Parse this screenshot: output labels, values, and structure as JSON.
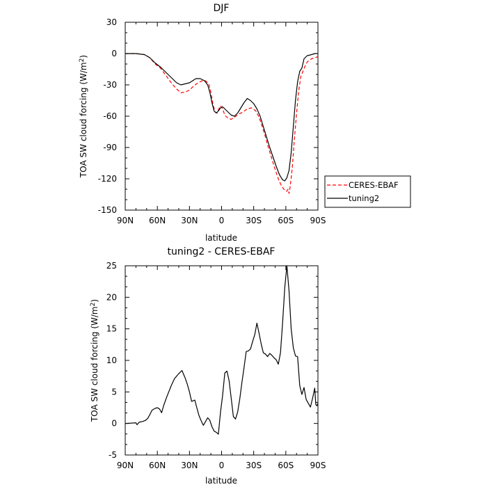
{
  "chart_data": [
    {
      "type": "line",
      "title": "DJF",
      "xlabel": "",
      "ylabel": "TOA SW cloud forcing (W/m",
      "ylabel_sup": "2",
      "ylabel_end": ")",
      "xlim": [
        -90,
        90
      ],
      "ylim": [
        -150,
        30
      ],
      "x_ticks": [
        -90,
        -60,
        -30,
        0,
        30,
        60,
        90
      ],
      "x_tick_labels": [
        "90N",
        "60N",
        "30N",
        "0",
        "30S",
        "60S",
        "90S"
      ],
      "y_ticks": [
        -150,
        -120,
        -90,
        -60,
        -30,
        0,
        30
      ],
      "y_tick_labels": [
        "-150",
        "-120",
        "-90",
        "-60",
        "-30",
        "0",
        "30"
      ],
      "legend_position": "right",
      "series": [
        {
          "name": "CERES-EBAF",
          "color": "#ff0000",
          "dash": "dashed",
          "points": [
            [
              -90,
              0
            ],
            [
              -80,
              0
            ],
            [
              -72,
              -1
            ],
            [
              -67,
              -4
            ],
            [
              -62,
              -10
            ],
            [
              -57,
              -14
            ],
            [
              -52,
              -21
            ],
            [
              -47,
              -28
            ],
            [
              -42,
              -34
            ],
            [
              -38,
              -37.5
            ],
            [
              -34,
              -37
            ],
            [
              -30,
              -35
            ],
            [
              -26,
              -31
            ],
            [
              -22,
              -28
            ],
            [
              -18,
              -26
            ],
            [
              -15,
              -26
            ],
            [
              -12,
              -29
            ],
            [
              -10,
              -37
            ],
            [
              -8,
              -49
            ],
            [
              -6,
              -56
            ],
            [
              -4,
              -57
            ],
            [
              -3,
              -54
            ],
            [
              -1,
              -50
            ],
            [
              1,
              -53
            ],
            [
              3,
              -59
            ],
            [
              6,
              -62
            ],
            [
              9,
              -63
            ],
            [
              12,
              -61
            ],
            [
              16,
              -58
            ],
            [
              20,
              -56
            ],
            [
              24,
              -53
            ],
            [
              28,
              -52
            ],
            [
              32,
              -55
            ],
            [
              35,
              -61
            ],
            [
              38,
              -70
            ],
            [
              41,
              -80
            ],
            [
              44,
              -91
            ],
            [
              47,
              -101
            ],
            [
              50,
              -111
            ],
            [
              53,
              -120
            ],
            [
              56,
              -127
            ],
            [
              59,
              -131
            ],
            [
              61,
              -132
            ],
            [
              62,
              -130
            ],
            [
              63,
              -134
            ],
            [
              64,
              -128
            ],
            [
              66,
              -110
            ],
            [
              68,
              -82
            ],
            [
              70,
              -58
            ],
            [
              72,
              -36
            ],
            [
              74,
              -22
            ],
            [
              76,
              -17
            ],
            [
              78,
              -12
            ],
            [
              80,
              -8
            ],
            [
              84,
              -5
            ],
            [
              87,
              -4
            ],
            [
              90,
              -3
            ]
          ]
        },
        {
          "name": "tuning2",
          "color": "#000000",
          "dash": "solid",
          "points": [
            [
              -90,
              0
            ],
            [
              -80,
              0
            ],
            [
              -72,
              -1
            ],
            [
              -67,
              -4
            ],
            [
              -62,
              -9
            ],
            [
              -57,
              -13
            ],
            [
              -52,
              -18
            ],
            [
              -47,
              -23
            ],
            [
              -42,
              -28
            ],
            [
              -38,
              -30
            ],
            [
              -34,
              -29
            ],
            [
              -30,
              -28
            ],
            [
              -27,
              -26
            ],
            [
              -24,
              -24
            ],
            [
              -20,
              -24
            ],
            [
              -16,
              -26
            ],
            [
              -13,
              -30
            ],
            [
              -11,
              -37
            ],
            [
              -9,
              -47
            ],
            [
              -7,
              -55
            ],
            [
              -5,
              -57
            ],
            [
              -3,
              -55
            ],
            [
              -1,
              -52
            ],
            [
              1,
              -51
            ],
            [
              3,
              -53
            ],
            [
              6,
              -56
            ],
            [
              9,
              -59
            ],
            [
              12,
              -60
            ],
            [
              15,
              -57
            ],
            [
              18,
              -52
            ],
            [
              21,
              -47
            ],
            [
              24,
              -43
            ],
            [
              27,
              -45
            ],
            [
              30,
              -48
            ],
            [
              33,
              -53
            ],
            [
              36,
              -60
            ],
            [
              39,
              -70
            ],
            [
              42,
              -80
            ],
            [
              45,
              -90
            ],
            [
              48,
              -99
            ],
            [
              51,
              -108
            ],
            [
              54,
              -116
            ],
            [
              57,
              -121
            ],
            [
              59,
              -122
            ],
            [
              61,
              -119
            ],
            [
              63,
              -112
            ],
            [
              65,
              -95
            ],
            [
              67,
              -70
            ],
            [
              69,
              -45
            ],
            [
              71,
              -27
            ],
            [
              73,
              -17
            ],
            [
              75,
              -14
            ],
            [
              77,
              -5
            ],
            [
              80,
              -2
            ],
            [
              84,
              -1
            ],
            [
              87,
              0
            ],
            [
              90,
              0
            ]
          ]
        }
      ]
    },
    {
      "type": "line",
      "title": "tuning2 - CERES-EBAF",
      "xlabel": "latitude",
      "ylabel": "TOA SW cloud forcing (W/m",
      "ylabel_sup": "2",
      "ylabel_end": ")",
      "xlim": [
        -90,
        90
      ],
      "ylim": [
        -5,
        25
      ],
      "x_ticks": [
        -90,
        -60,
        -30,
        0,
        30,
        60,
        90
      ],
      "x_tick_labels": [
        "90N",
        "60N",
        "30N",
        "0",
        "30S",
        "60S",
        "90S"
      ],
      "y_ticks": [
        -5,
        0,
        5,
        10,
        15,
        20,
        25
      ],
      "y_tick_labels": [
        "-5",
        "0",
        "5",
        "10",
        "15",
        "20",
        "25"
      ],
      "series": [
        {
          "color": "#000000",
          "dash": "solid",
          "points": [
            [
              -90,
              0
            ],
            [
              -80,
              0.1
            ],
            [
              -79,
              -0.2
            ],
            [
              -77,
              0.2
            ],
            [
              -74,
              0.3
            ],
            [
              -71,
              0.5
            ],
            [
              -69,
              0.8
            ],
            [
              -67,
              1.4
            ],
            [
              -65,
              2.1
            ],
            [
              -62,
              2.4
            ],
            [
              -60,
              2.5
            ],
            [
              -58,
              2.3
            ],
            [
              -56,
              1.7
            ],
            [
              -54,
              2.9
            ],
            [
              -51,
              4.3
            ],
            [
              -47,
              6.0
            ],
            [
              -44,
              7.1
            ],
            [
              -40,
              7.9
            ],
            [
              -37,
              8.4
            ],
            [
              -34,
              7.2
            ],
            [
              -32,
              6.2
            ],
            [
              -30,
              5.0
            ],
            [
              -28,
              3.5
            ],
            [
              -25,
              3.7
            ],
            [
              -23,
              2.4
            ],
            [
              -21,
              1.2
            ],
            [
              -19,
              0.4
            ],
            [
              -17,
              -0.3
            ],
            [
              -15,
              0.3
            ],
            [
              -13,
              0.9
            ],
            [
              -11,
              0.5
            ],
            [
              -9,
              -0.5
            ],
            [
              -7,
              -1.2
            ],
            [
              -5,
              -1.4
            ],
            [
              -3,
              -1.7
            ],
            [
              -1,
              1.8
            ],
            [
              1,
              4.5
            ],
            [
              3,
              8.0
            ],
            [
              5,
              8.3
            ],
            [
              7,
              6.8
            ],
            [
              9,
              4.0
            ],
            [
              11,
              1.1
            ],
            [
              13,
              0.7
            ],
            [
              15,
              1.8
            ],
            [
              17,
              3.9
            ],
            [
              19,
              6.5
            ],
            [
              21,
              8.9
            ],
            [
              23,
              11.4
            ],
            [
              25,
              11.5
            ],
            [
              27,
              11.8
            ],
            [
              29,
              13.0
            ],
            [
              31,
              14.1
            ],
            [
              33,
              15.9
            ],
            [
              35,
              14.3
            ],
            [
              37,
              12.6
            ],
            [
              39,
              11.2
            ],
            [
              41,
              11.0
            ],
            [
              43,
              10.6
            ],
            [
              45,
              11.1
            ],
            [
              47,
              10.8
            ],
            [
              49,
              10.4
            ],
            [
              51,
              10.1
            ],
            [
              53,
              9.4
            ],
            [
              55,
              11.2
            ],
            [
              57,
              16.0
            ],
            [
              59,
              21.5
            ],
            [
              61,
              25.0
            ],
            [
              63,
              21.0
            ],
            [
              65,
              15.0
            ],
            [
              67,
              12.0
            ],
            [
              69,
              10.7
            ],
            [
              71,
              10.6
            ],
            [
              73,
              6.0
            ],
            [
              75,
              4.6
            ],
            [
              77,
              5.7
            ],
            [
              79,
              3.8
            ],
            [
              81,
              3.2
            ],
            [
              83,
              2.6
            ],
            [
              85,
              4.0
            ],
            [
              87,
              5.6
            ],
            [
              88,
              3.0
            ],
            [
              89,
              2.8
            ],
            [
              90,
              3.2
            ]
          ]
        }
      ]
    }
  ]
}
